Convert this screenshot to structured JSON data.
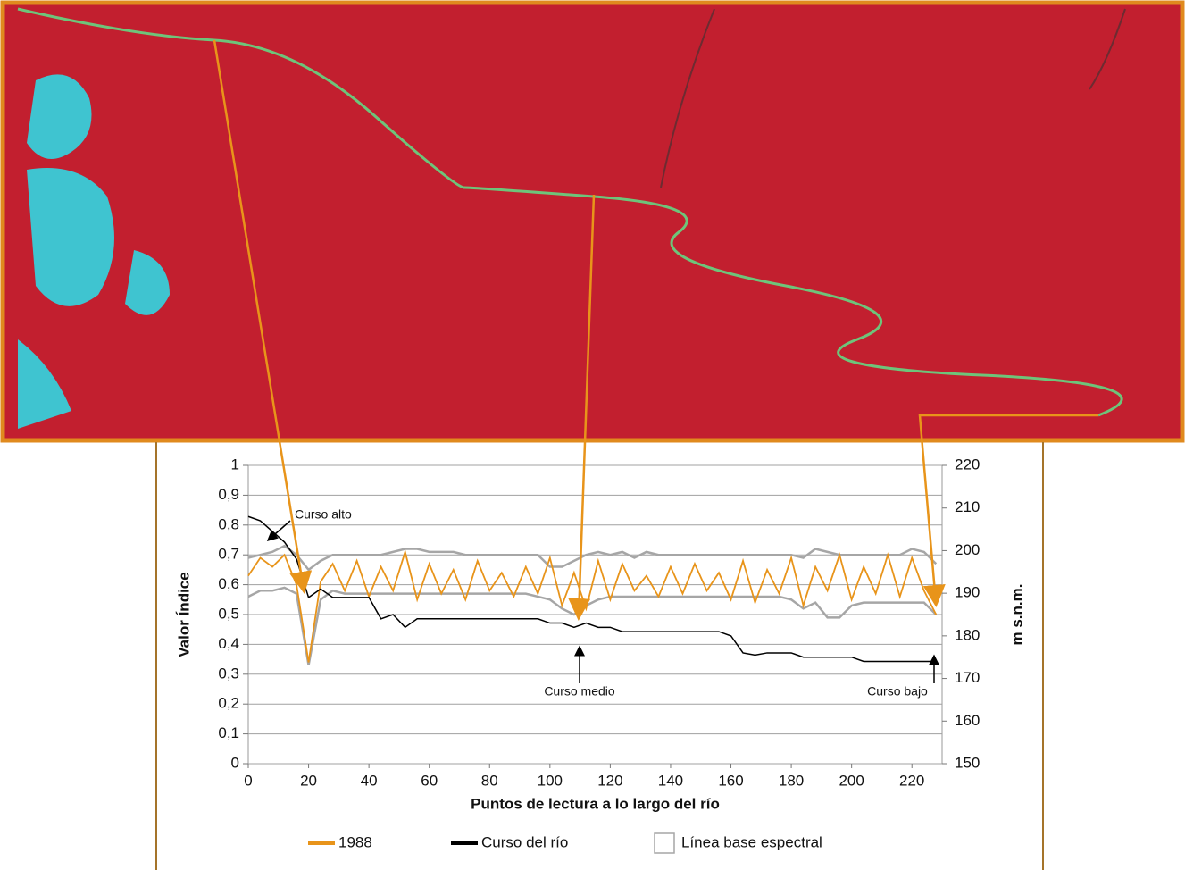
{
  "chart_data": {
    "type": "line",
    "x": [
      0,
      4,
      8,
      12,
      16,
      20,
      24,
      28,
      32,
      36,
      40,
      44,
      48,
      52,
      56,
      60,
      64,
      68,
      72,
      76,
      80,
      84,
      88,
      92,
      96,
      100,
      104,
      108,
      112,
      116,
      120,
      124,
      128,
      132,
      136,
      140,
      144,
      148,
      152,
      156,
      160,
      164,
      168,
      172,
      176,
      180,
      184,
      188,
      192,
      196,
      200,
      204,
      208,
      212,
      216,
      220,
      224,
      228
    ],
    "series": [
      {
        "name": "1988",
        "color": "#e8941a",
        "values": [
          0.63,
          0.69,
          0.66,
          0.7,
          0.6,
          0.34,
          0.61,
          0.67,
          0.58,
          0.68,
          0.56,
          0.66,
          0.58,
          0.71,
          0.55,
          0.67,
          0.57,
          0.65,
          0.55,
          0.68,
          0.58,
          0.64,
          0.56,
          0.66,
          0.57,
          0.69,
          0.53,
          0.64,
          0.52,
          0.68,
          0.55,
          0.67,
          0.58,
          0.63,
          0.56,
          0.66,
          0.57,
          0.67,
          0.58,
          0.64,
          0.55,
          0.68,
          0.54,
          0.65,
          0.57,
          0.69,
          0.53,
          0.66,
          0.58,
          0.7,
          0.55,
          0.66,
          0.57,
          0.7,
          0.56,
          0.69,
          0.58,
          0.5
        ]
      },
      {
        "name": "Curso del río",
        "color": "#000000",
        "axis": "y2",
        "values": [
          208,
          207,
          204.5,
          202,
          198,
          189,
          191,
          189,
          189,
          189,
          189,
          184,
          185,
          182,
          184,
          184,
          184,
          184,
          184,
          184,
          184,
          184,
          184,
          184,
          184,
          183,
          183,
          182,
          183,
          182,
          182,
          181,
          181,
          181,
          181,
          181,
          181,
          181,
          181,
          181,
          180,
          176,
          175.5,
          176,
          176,
          176,
          175,
          175,
          175,
          175,
          175,
          174,
          174,
          174,
          174,
          174,
          174,
          174
        ]
      }
    ],
    "baseline": {
      "name": "Línea base espectral",
      "color": "#a6a6a6",
      "upper": [
        0.69,
        0.7,
        0.71,
        0.73,
        0.7,
        0.65,
        0.68,
        0.7,
        0.7,
        0.7,
        0.7,
        0.7,
        0.71,
        0.72,
        0.72,
        0.71,
        0.71,
        0.71,
        0.7,
        0.7,
        0.7,
        0.7,
        0.7,
        0.7,
        0.7,
        0.66,
        0.66,
        0.68,
        0.7,
        0.71,
        0.7,
        0.71,
        0.69,
        0.71,
        0.7,
        0.7,
        0.7,
        0.7,
        0.7,
        0.7,
        0.7,
        0.7,
        0.7,
        0.7,
        0.7,
        0.7,
        0.69,
        0.72,
        0.71,
        0.7,
        0.7,
        0.7,
        0.7,
        0.7,
        0.7,
        0.72,
        0.71,
        0.67
      ],
      "lower": [
        0.56,
        0.58,
        0.58,
        0.59,
        0.57,
        0.33,
        0.55,
        0.58,
        0.57,
        0.57,
        0.57,
        0.57,
        0.57,
        0.57,
        0.57,
        0.57,
        0.57,
        0.57,
        0.57,
        0.57,
        0.57,
        0.57,
        0.57,
        0.57,
        0.56,
        0.55,
        0.52,
        0.5,
        0.53,
        0.55,
        0.56,
        0.56,
        0.56,
        0.56,
        0.56,
        0.56,
        0.56,
        0.56,
        0.56,
        0.56,
        0.56,
        0.56,
        0.56,
        0.56,
        0.56,
        0.55,
        0.52,
        0.54,
        0.49,
        0.49,
        0.53,
        0.54,
        0.54,
        0.54,
        0.54,
        0.54,
        0.54,
        0.5
      ]
    },
    "xlabel": "Puntos de lectura a lo largo del río",
    "ylabel": "Valor Índice",
    "y2label": "m s.n.m.",
    "xlim": [
      0,
      230
    ],
    "xticks": [
      0,
      20,
      40,
      60,
      80,
      100,
      120,
      140,
      160,
      180,
      200,
      220
    ],
    "ylim": [
      0,
      1
    ],
    "yticks": [
      0,
      {
        "value": 0.1,
        "label": "0,1"
      },
      {
        "value": 0.2,
        "label": "0,2"
      },
      {
        "value": 0.3,
        "label": "0,3"
      },
      {
        "value": 0.4,
        "label": "0,4"
      },
      {
        "value": 0.5,
        "label": "0,5"
      },
      {
        "value": 0.6,
        "label": "0,6"
      },
      {
        "value": 0.7,
        "label": "0,7"
      },
      {
        "value": 0.8,
        "label": "0,8"
      },
      {
        "value": 0.9,
        "label": "0,9"
      },
      1
    ],
    "y2lim": [
      150,
      220
    ],
    "y2ticks": [
      150,
      160,
      170,
      180,
      190,
      200,
      210,
      220
    ],
    "grid": true,
    "annotations": [
      "Curso alto",
      "Curso medio",
      "Curso bajo"
    ]
  }
}
